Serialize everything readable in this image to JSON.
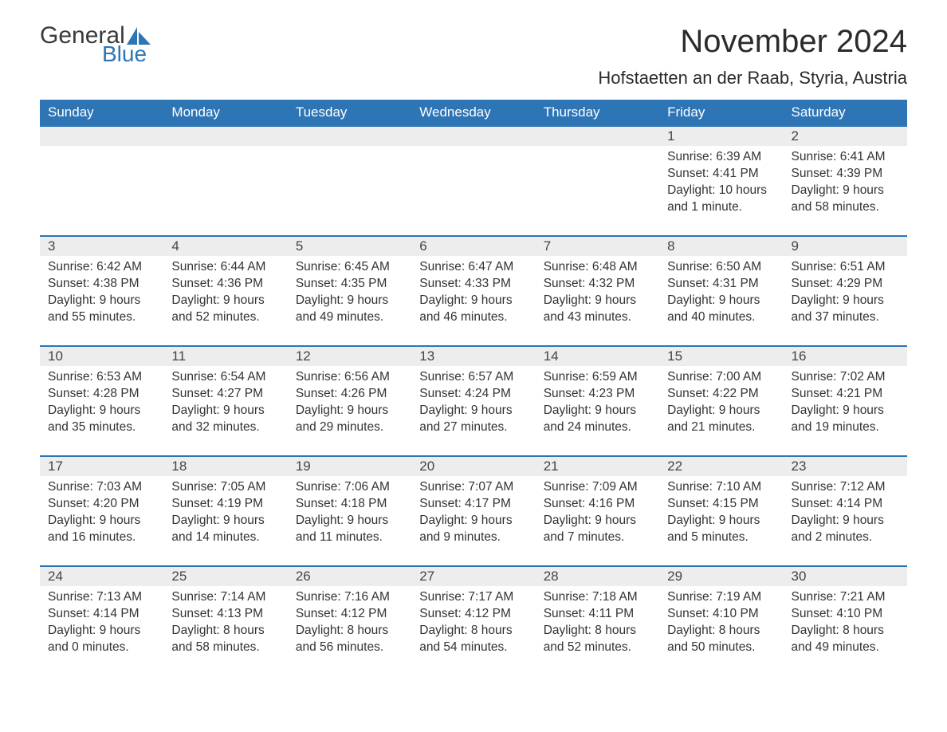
{
  "logo": {
    "text1": "General",
    "text2": "Blue",
    "sail_color": "#2e75b6"
  },
  "title": "November 2024",
  "location": "Hofstaetten an der Raab, Styria, Austria",
  "colors": {
    "header_bg": "#2e75b6",
    "header_text": "#ffffff",
    "row_border": "#2e75b6",
    "daynum_bg": "#ededed",
    "body_text": "#333333",
    "page_bg": "#ffffff"
  },
  "typography": {
    "title_size_pt": 30,
    "location_size_pt": 17,
    "header_size_pt": 13,
    "daynum_size_pt": 13,
    "body_size_pt": 12,
    "font_family": "Arial"
  },
  "weekdays": [
    "Sunday",
    "Monday",
    "Tuesday",
    "Wednesday",
    "Thursday",
    "Friday",
    "Saturday"
  ],
  "weeks": [
    [
      null,
      null,
      null,
      null,
      null,
      {
        "n": "1",
        "sunrise": "Sunrise: 6:39 AM",
        "sunset": "Sunset: 4:41 PM",
        "daylight": "Daylight: 10 hours and 1 minute."
      },
      {
        "n": "2",
        "sunrise": "Sunrise: 6:41 AM",
        "sunset": "Sunset: 4:39 PM",
        "daylight": "Daylight: 9 hours and 58 minutes."
      }
    ],
    [
      {
        "n": "3",
        "sunrise": "Sunrise: 6:42 AM",
        "sunset": "Sunset: 4:38 PM",
        "daylight": "Daylight: 9 hours and 55 minutes."
      },
      {
        "n": "4",
        "sunrise": "Sunrise: 6:44 AM",
        "sunset": "Sunset: 4:36 PM",
        "daylight": "Daylight: 9 hours and 52 minutes."
      },
      {
        "n": "5",
        "sunrise": "Sunrise: 6:45 AM",
        "sunset": "Sunset: 4:35 PM",
        "daylight": "Daylight: 9 hours and 49 minutes."
      },
      {
        "n": "6",
        "sunrise": "Sunrise: 6:47 AM",
        "sunset": "Sunset: 4:33 PM",
        "daylight": "Daylight: 9 hours and 46 minutes."
      },
      {
        "n": "7",
        "sunrise": "Sunrise: 6:48 AM",
        "sunset": "Sunset: 4:32 PM",
        "daylight": "Daylight: 9 hours and 43 minutes."
      },
      {
        "n": "8",
        "sunrise": "Sunrise: 6:50 AM",
        "sunset": "Sunset: 4:31 PM",
        "daylight": "Daylight: 9 hours and 40 minutes."
      },
      {
        "n": "9",
        "sunrise": "Sunrise: 6:51 AM",
        "sunset": "Sunset: 4:29 PM",
        "daylight": "Daylight: 9 hours and 37 minutes."
      }
    ],
    [
      {
        "n": "10",
        "sunrise": "Sunrise: 6:53 AM",
        "sunset": "Sunset: 4:28 PM",
        "daylight": "Daylight: 9 hours and 35 minutes."
      },
      {
        "n": "11",
        "sunrise": "Sunrise: 6:54 AM",
        "sunset": "Sunset: 4:27 PM",
        "daylight": "Daylight: 9 hours and 32 minutes."
      },
      {
        "n": "12",
        "sunrise": "Sunrise: 6:56 AM",
        "sunset": "Sunset: 4:26 PM",
        "daylight": "Daylight: 9 hours and 29 minutes."
      },
      {
        "n": "13",
        "sunrise": "Sunrise: 6:57 AM",
        "sunset": "Sunset: 4:24 PM",
        "daylight": "Daylight: 9 hours and 27 minutes."
      },
      {
        "n": "14",
        "sunrise": "Sunrise: 6:59 AM",
        "sunset": "Sunset: 4:23 PM",
        "daylight": "Daylight: 9 hours and 24 minutes."
      },
      {
        "n": "15",
        "sunrise": "Sunrise: 7:00 AM",
        "sunset": "Sunset: 4:22 PM",
        "daylight": "Daylight: 9 hours and 21 minutes."
      },
      {
        "n": "16",
        "sunrise": "Sunrise: 7:02 AM",
        "sunset": "Sunset: 4:21 PM",
        "daylight": "Daylight: 9 hours and 19 minutes."
      }
    ],
    [
      {
        "n": "17",
        "sunrise": "Sunrise: 7:03 AM",
        "sunset": "Sunset: 4:20 PM",
        "daylight": "Daylight: 9 hours and 16 minutes."
      },
      {
        "n": "18",
        "sunrise": "Sunrise: 7:05 AM",
        "sunset": "Sunset: 4:19 PM",
        "daylight": "Daylight: 9 hours and 14 minutes."
      },
      {
        "n": "19",
        "sunrise": "Sunrise: 7:06 AM",
        "sunset": "Sunset: 4:18 PM",
        "daylight": "Daylight: 9 hours and 11 minutes."
      },
      {
        "n": "20",
        "sunrise": "Sunrise: 7:07 AM",
        "sunset": "Sunset: 4:17 PM",
        "daylight": "Daylight: 9 hours and 9 minutes."
      },
      {
        "n": "21",
        "sunrise": "Sunrise: 7:09 AM",
        "sunset": "Sunset: 4:16 PM",
        "daylight": "Daylight: 9 hours and 7 minutes."
      },
      {
        "n": "22",
        "sunrise": "Sunrise: 7:10 AM",
        "sunset": "Sunset: 4:15 PM",
        "daylight": "Daylight: 9 hours and 5 minutes."
      },
      {
        "n": "23",
        "sunrise": "Sunrise: 7:12 AM",
        "sunset": "Sunset: 4:14 PM",
        "daylight": "Daylight: 9 hours and 2 minutes."
      }
    ],
    [
      {
        "n": "24",
        "sunrise": "Sunrise: 7:13 AM",
        "sunset": "Sunset: 4:14 PM",
        "daylight": "Daylight: 9 hours and 0 minutes."
      },
      {
        "n": "25",
        "sunrise": "Sunrise: 7:14 AM",
        "sunset": "Sunset: 4:13 PM",
        "daylight": "Daylight: 8 hours and 58 minutes."
      },
      {
        "n": "26",
        "sunrise": "Sunrise: 7:16 AM",
        "sunset": "Sunset: 4:12 PM",
        "daylight": "Daylight: 8 hours and 56 minutes."
      },
      {
        "n": "27",
        "sunrise": "Sunrise: 7:17 AM",
        "sunset": "Sunset: 4:12 PM",
        "daylight": "Daylight: 8 hours and 54 minutes."
      },
      {
        "n": "28",
        "sunrise": "Sunrise: 7:18 AM",
        "sunset": "Sunset: 4:11 PM",
        "daylight": "Daylight: 8 hours and 52 minutes."
      },
      {
        "n": "29",
        "sunrise": "Sunrise: 7:19 AM",
        "sunset": "Sunset: 4:10 PM",
        "daylight": "Daylight: 8 hours and 50 minutes."
      },
      {
        "n": "30",
        "sunrise": "Sunrise: 7:21 AM",
        "sunset": "Sunset: 4:10 PM",
        "daylight": "Daylight: 8 hours and 49 minutes."
      }
    ]
  ]
}
